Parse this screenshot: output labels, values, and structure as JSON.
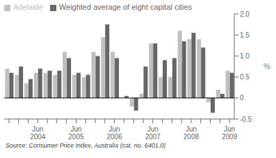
{
  "chart_data": {
    "type": "bar",
    "categories": [
      null,
      null,
      null,
      "Jun\n2004",
      null,
      null,
      null,
      "Jun\n2005",
      null,
      null,
      null,
      "Jun\n2006",
      null,
      null,
      null,
      "Jun\n2007",
      null,
      null,
      null,
      "Jun\n2008",
      null,
      null,
      null,
      "Jun\n2009"
    ],
    "series": [
      {
        "name": "Adelaide",
        "color": "#c0c0c0",
        "values": [
          0.7,
          0.55,
          0.35,
          0.6,
          0.6,
          0.55,
          1.1,
          0.55,
          0.5,
          1.1,
          1.45,
          1.1,
          0.0,
          -0.2,
          0.1,
          1.3,
          0.5,
          0.5,
          1.6,
          1.4,
          1.4,
          -0.1,
          0.2,
          0.65
        ]
      },
      {
        "name": "Weighted average of eight capital cities",
        "color": "#666666",
        "values": [
          0.6,
          0.75,
          0.45,
          0.7,
          0.65,
          0.65,
          0.95,
          0.6,
          0.55,
          1.0,
          1.75,
          0.95,
          0.05,
          -0.3,
          0.75,
          1.3,
          0.9,
          0.95,
          1.35,
          1.55,
          1.2,
          -0.35,
          0.1,
          0.6
        ]
      }
    ],
    "ylabel": "%",
    "ylim": [
      -0.5,
      2.0
    ],
    "yticks": [
      -0.5,
      0,
      0.5,
      {
        "value": 1,
        "label": "1.0"
      },
      1.5,
      {
        "value": 2,
        "label": "2.0"
      }
    ],
    "grid": false,
    "legend": "upper left",
    "annotations": [
      "Source: Consumer Price Index, Australia (cat. no. 6401.0)"
    ]
  }
}
